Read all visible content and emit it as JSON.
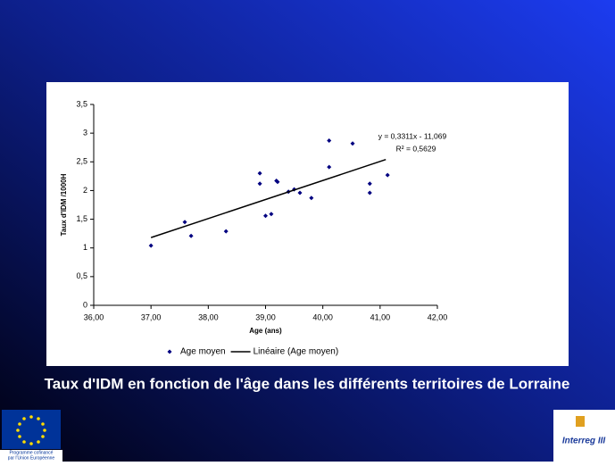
{
  "chart_data": {
    "type": "scatter",
    "x_label": "Age (ans)",
    "y_label": "Taux d'IDM /1000H",
    "xlim": [
      36,
      42
    ],
    "xticks": [
      {
        "value": 36,
        "label": "36,00"
      },
      {
        "value": 37,
        "label": "37,00"
      },
      {
        "value": 38,
        "label": "38,00"
      },
      {
        "value": 39,
        "label": "39,00"
      },
      {
        "value": 40,
        "label": "40,00"
      },
      {
        "value": 41,
        "label": "41,00"
      },
      {
        "value": 42,
        "label": "42,00"
      }
    ],
    "ylim": [
      0,
      3.5
    ],
    "yticks": [
      0,
      {
        "value": 0.5,
        "label": "0,5"
      },
      1,
      {
        "value": 1.5,
        "label": "1,5"
      },
      2,
      {
        "value": 2.5,
        "label": "2,5"
      },
      3,
      {
        "value": 3.5,
        "label": "3,5"
      }
    ],
    "grid": false,
    "legend": "bottom",
    "annotations": [
      "y = 0,3311x - 11,069",
      "R² = 0,5629"
    ],
    "series": [
      {
        "name": "Age moyen",
        "color": "#000080",
        "x": [
          37.0,
          37.59,
          37.7,
          38.31,
          38.9,
          38.9,
          39.0,
          39.1,
          39.19,
          39.21,
          39.4,
          39.5,
          39.6,
          39.8,
          40.11,
          40.11,
          40.52,
          40.82,
          40.82,
          41.13
        ],
        "values": [
          1.04,
          1.45,
          1.21,
          1.29,
          2.3,
          2.12,
          1.56,
          1.59,
          2.17,
          2.15,
          1.98,
          2.02,
          1.96,
          1.87,
          2.87,
          2.41,
          2.82,
          2.12,
          1.96,
          2.27
        ]
      },
      {
        "name": "Linéaire (Age moyen)",
        "color": "#000000",
        "type": "line",
        "x": [
          37.0,
          41.1
        ],
        "values": [
          1.18,
          2.54
        ]
      }
    ]
  },
  "slide_title": "Taux d'IDM en fonction de l'âge dans les différents territoires de Lorraine",
  "logos": {
    "left_caption": [
      "Programme cofinancé",
      "par l'Union Européenne"
    ],
    "right_label": "Interreg III"
  }
}
